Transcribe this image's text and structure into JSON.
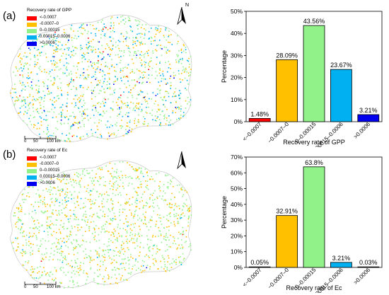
{
  "panels": [
    {
      "label": "(a)",
      "legend_title": "Recovery rate of GPP",
      "north_label": "N",
      "scale_labels": [
        "0",
        "50",
        "100 km"
      ]
    },
    {
      "label": "(b)",
      "legend_title": "Recovery rate of Ec",
      "north_label": "",
      "scale_labels": [
        "0",
        "50",
        "100 km"
      ]
    }
  ],
  "legend_classes": [
    {
      "label": "<-0.0007",
      "color": "#ff0000"
    },
    {
      "label": "-0.0007–0",
      "color": "#ffc000"
    },
    {
      "label": "0–0.00015",
      "color": "#92f28a"
    },
    {
      "label": "0.00015–0.0006",
      "color": "#00b0f0"
    },
    {
      "label": ">0.0006",
      "color": "#0000ee"
    }
  ],
  "chart_data": [
    {
      "type": "bar",
      "categories": [
        "<−0.0007",
        "−0.0007–0",
        "0–0.00015",
        "0.00015–0.0006",
        ">0.0006"
      ],
      "values": [
        1.48,
        28.09,
        43.56,
        23.67,
        3.21
      ],
      "data_labels": [
        "1.48%",
        "28.09%",
        "43.56%",
        "23.67%",
        "3.21%"
      ],
      "colors": [
        "#ff0000",
        "#ffc000",
        "#92f28a",
        "#00b0f0",
        "#0000ee"
      ],
      "xlabel": "Recovery rate of GPP",
      "ylabel": "Percentage",
      "ylim": [
        0,
        50
      ],
      "yticks": [
        "0%",
        "10%",
        "20%",
        "30%",
        "40%",
        "50%"
      ],
      "ytick_values": [
        0,
        10,
        20,
        30,
        40,
        50
      ]
    },
    {
      "type": "bar",
      "categories": [
        "<−0.0007",
        "−0.0007–0",
        "0–0.00015",
        "0.00015–0.0006",
        ">0.0006"
      ],
      "values": [
        0.05,
        32.91,
        63.8,
        3.21,
        0.03
      ],
      "data_labels": [
        "0.05%",
        "32.91%",
        "63.8%",
        "3.21%",
        "0.03%"
      ],
      "colors": [
        "#ff0000",
        "#ffc000",
        "#92f28a",
        "#00b0f0",
        "#0000ee"
      ],
      "xlabel": "Recovery rate of Ec",
      "ylabel": "Percentage",
      "ylim": [
        0,
        70
      ],
      "yticks": [
        "0%",
        "10%",
        "20%",
        "30%",
        "40%",
        "50%",
        "60%",
        "70%"
      ],
      "ytick_values": [
        0,
        10,
        20,
        30,
        40,
        50,
        60,
        70
      ]
    }
  ]
}
